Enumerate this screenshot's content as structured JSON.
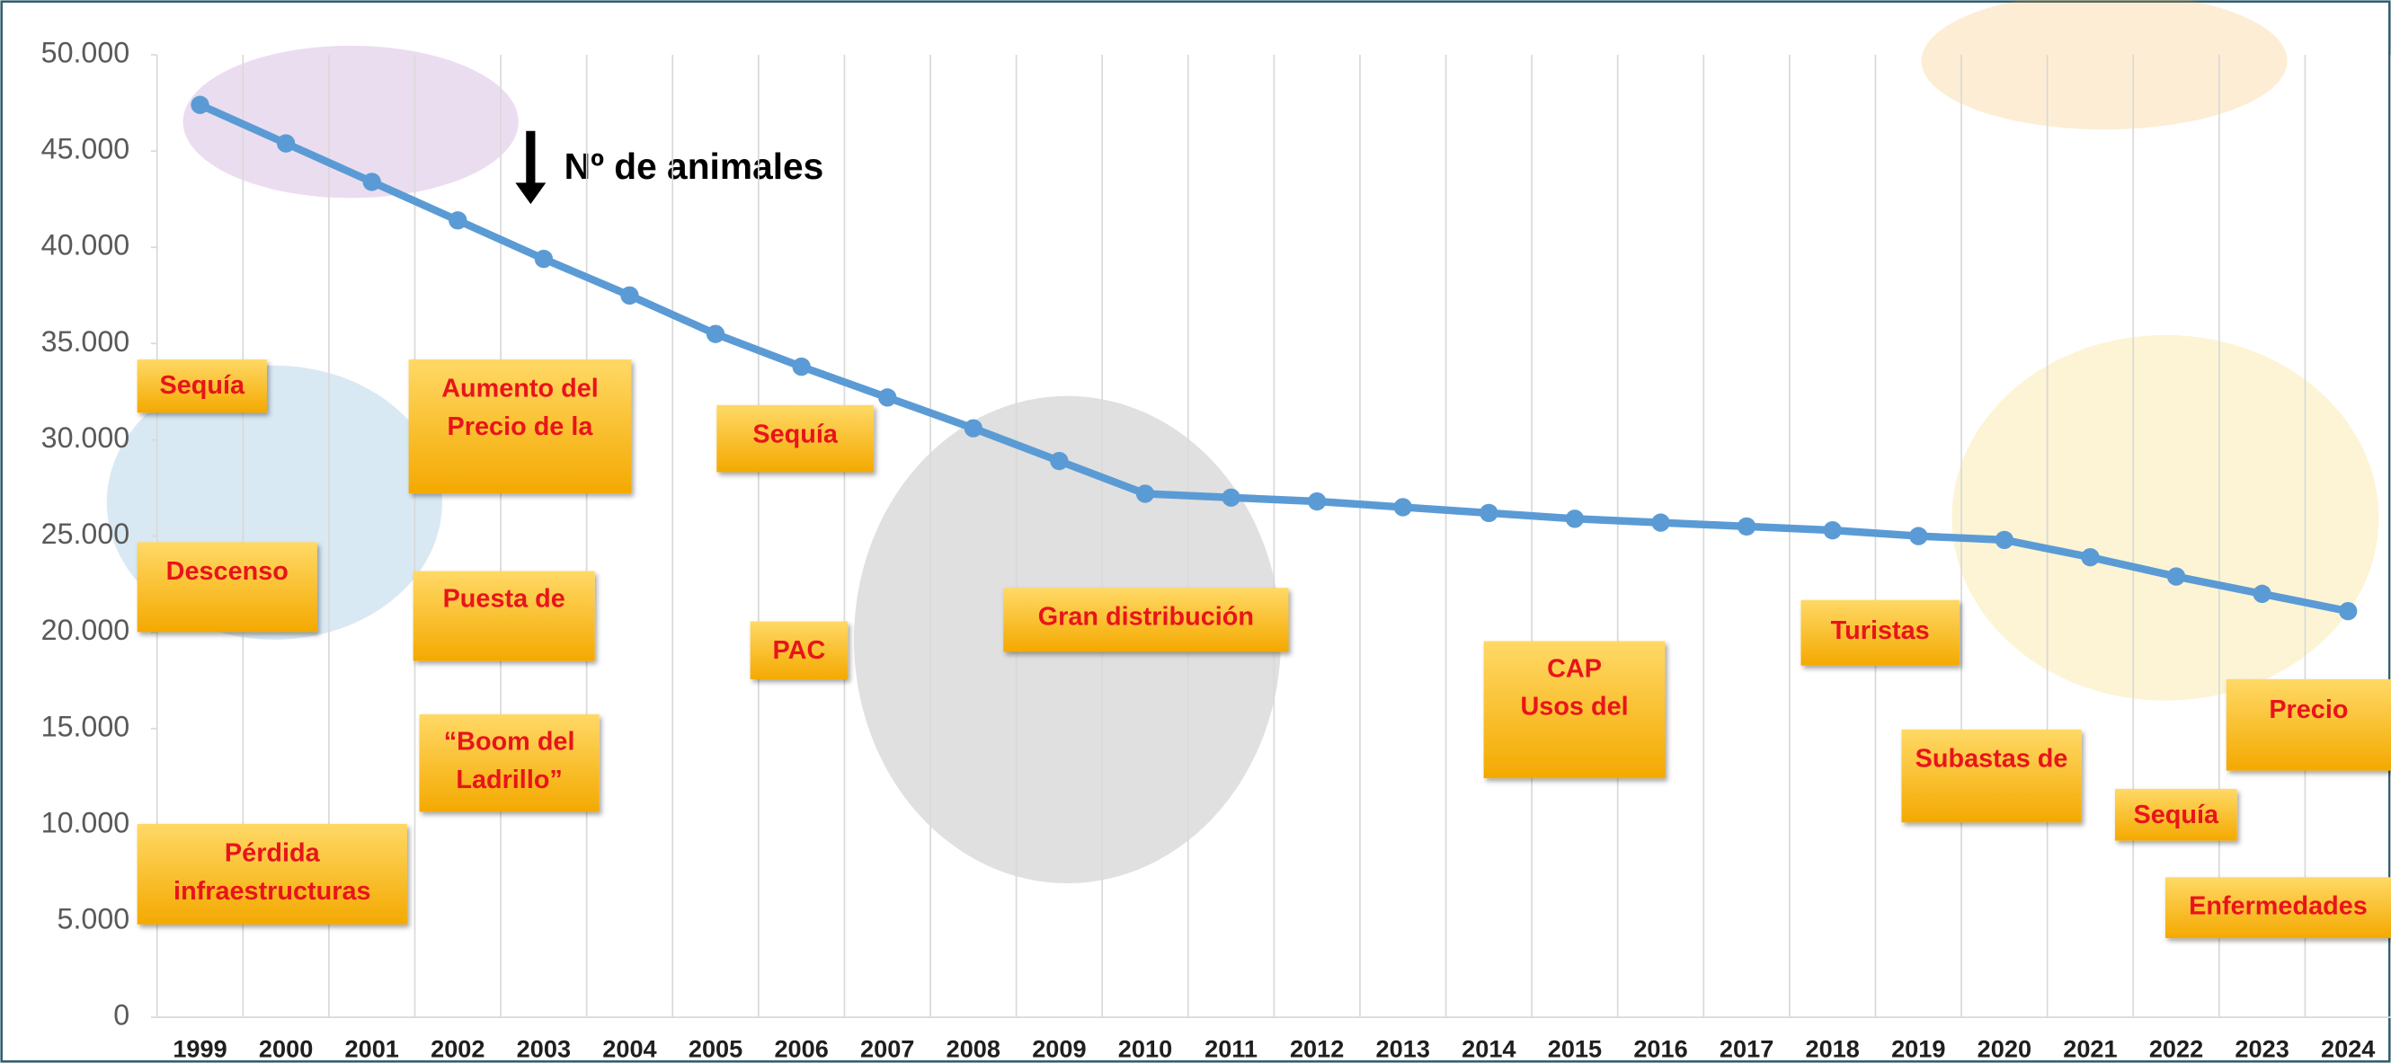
{
  "chart_data": {
    "type": "line",
    "categories": [
      "1999",
      "2000",
      "2001",
      "2002",
      "2003",
      "2004",
      "2005",
      "2006",
      "2007",
      "2008",
      "2009",
      "2010",
      "2011",
      "2012",
      "2013",
      "2014",
      "2015",
      "2016",
      "2017",
      "2018",
      "2019",
      "2020",
      "2021",
      "2022",
      "2023",
      "2024"
    ],
    "values": [
      47400,
      45400,
      43400,
      41400,
      39400,
      37500,
      35500,
      33800,
      32200,
      30600,
      28900,
      27200,
      27000,
      26800,
      26500,
      26200,
      25900,
      25700,
      25500,
      25300,
      25000,
      24800,
      23900,
      22900,
      22000,
      21100
    ],
    "color": "#5b9bd5",
    "ylim": [
      0,
      50000
    ],
    "yticks": [
      0,
      {
        "value": 5000,
        "label": "5.000"
      },
      {
        "value": 10000,
        "label": "10.000"
      },
      {
        "value": 15000,
        "label": "15.000"
      },
      {
        "value": 20000,
        "label": "20.000"
      },
      {
        "value": 25000,
        "label": "25.000"
      },
      {
        "value": 30000,
        "label": "30.000"
      },
      {
        "value": 35000,
        "label": "35.000"
      },
      {
        "value": 40000,
        "label": "40.000"
      },
      {
        "value": 45000,
        "label": "45.000"
      },
      {
        "value": 50000,
        "label": "50.000"
      }
    ],
    "grid": true,
    "arrow_label": "Nº de animales",
    "annotations": [
      [
        "Sequía"
      ],
      [
        "Descenso"
      ],
      [
        "Pérdida",
        "infraestructuras"
      ],
      [
        "Aumento del",
        "Precio de la"
      ],
      [
        "Puesta de"
      ],
      [
        "“Boom del",
        "Ladrillo”"
      ],
      [
        "Sequía"
      ],
      [
        "PAC"
      ],
      [
        "Gran distribución"
      ],
      [
        "CAP",
        "Usos del"
      ],
      [
        "Turistas"
      ],
      [
        "Subastas de"
      ],
      [
        "Sequía"
      ],
      [
        "Precio"
      ],
      [
        "Enfermedades"
      ]
    ]
  }
}
